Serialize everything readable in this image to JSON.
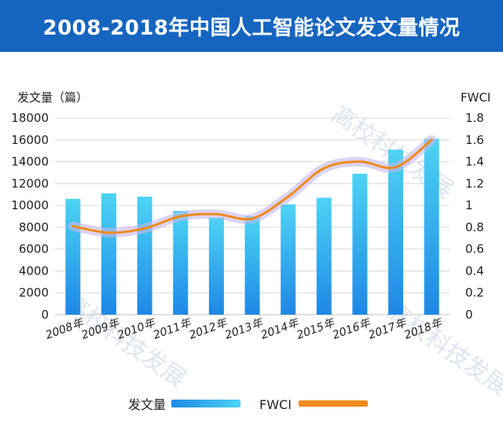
{
  "header": {
    "title": "2008-2018年中国人工智能论文发文量情况"
  },
  "watermark": {
    "text": "高校科技发展"
  },
  "colors": {
    "banner": "#1565c0",
    "bar_top": "#4dd3f5",
    "bar_bottom": "#1e88e5",
    "line": "#f08a1c",
    "line_glow": "#c7b8ef"
  },
  "chart_data": {
    "type": "bar",
    "title": "",
    "categories": [
      "2008年",
      "2009年",
      "2010年",
      "2011年",
      "2012年",
      "2013年",
      "2014年",
      "2015年",
      "2016年",
      "2017年",
      "2018年"
    ],
    "series": [
      {
        "name": "发文量",
        "type": "bar",
        "axis": "left",
        "values": [
          10600,
          11100,
          10800,
          9500,
          8900,
          9000,
          10100,
          10700,
          12900,
          15100,
          16100
        ]
      },
      {
        "name": "FWCI",
        "type": "line",
        "axis": "right",
        "values": [
          0.81,
          0.75,
          0.79,
          0.9,
          0.92,
          0.88,
          1.08,
          1.34,
          1.4,
          1.35,
          1.6
        ]
      }
    ],
    "ylabel": "发文量（篇）",
    "y2label": "FWCI",
    "ylim": [
      0,
      18000
    ],
    "y2lim": [
      0,
      1.8
    ],
    "yticks": [
      "0",
      "2000",
      "4000",
      "6000",
      "8000",
      "10000",
      "12000",
      "14000",
      "16000",
      "18000"
    ],
    "y2ticks": [
      "0",
      "0.2",
      "0.4",
      "0.6",
      "0.8",
      "1",
      "1.2",
      "1.4",
      "1.6",
      "1.8"
    ],
    "grid": true,
    "legend_position": "bottom"
  }
}
